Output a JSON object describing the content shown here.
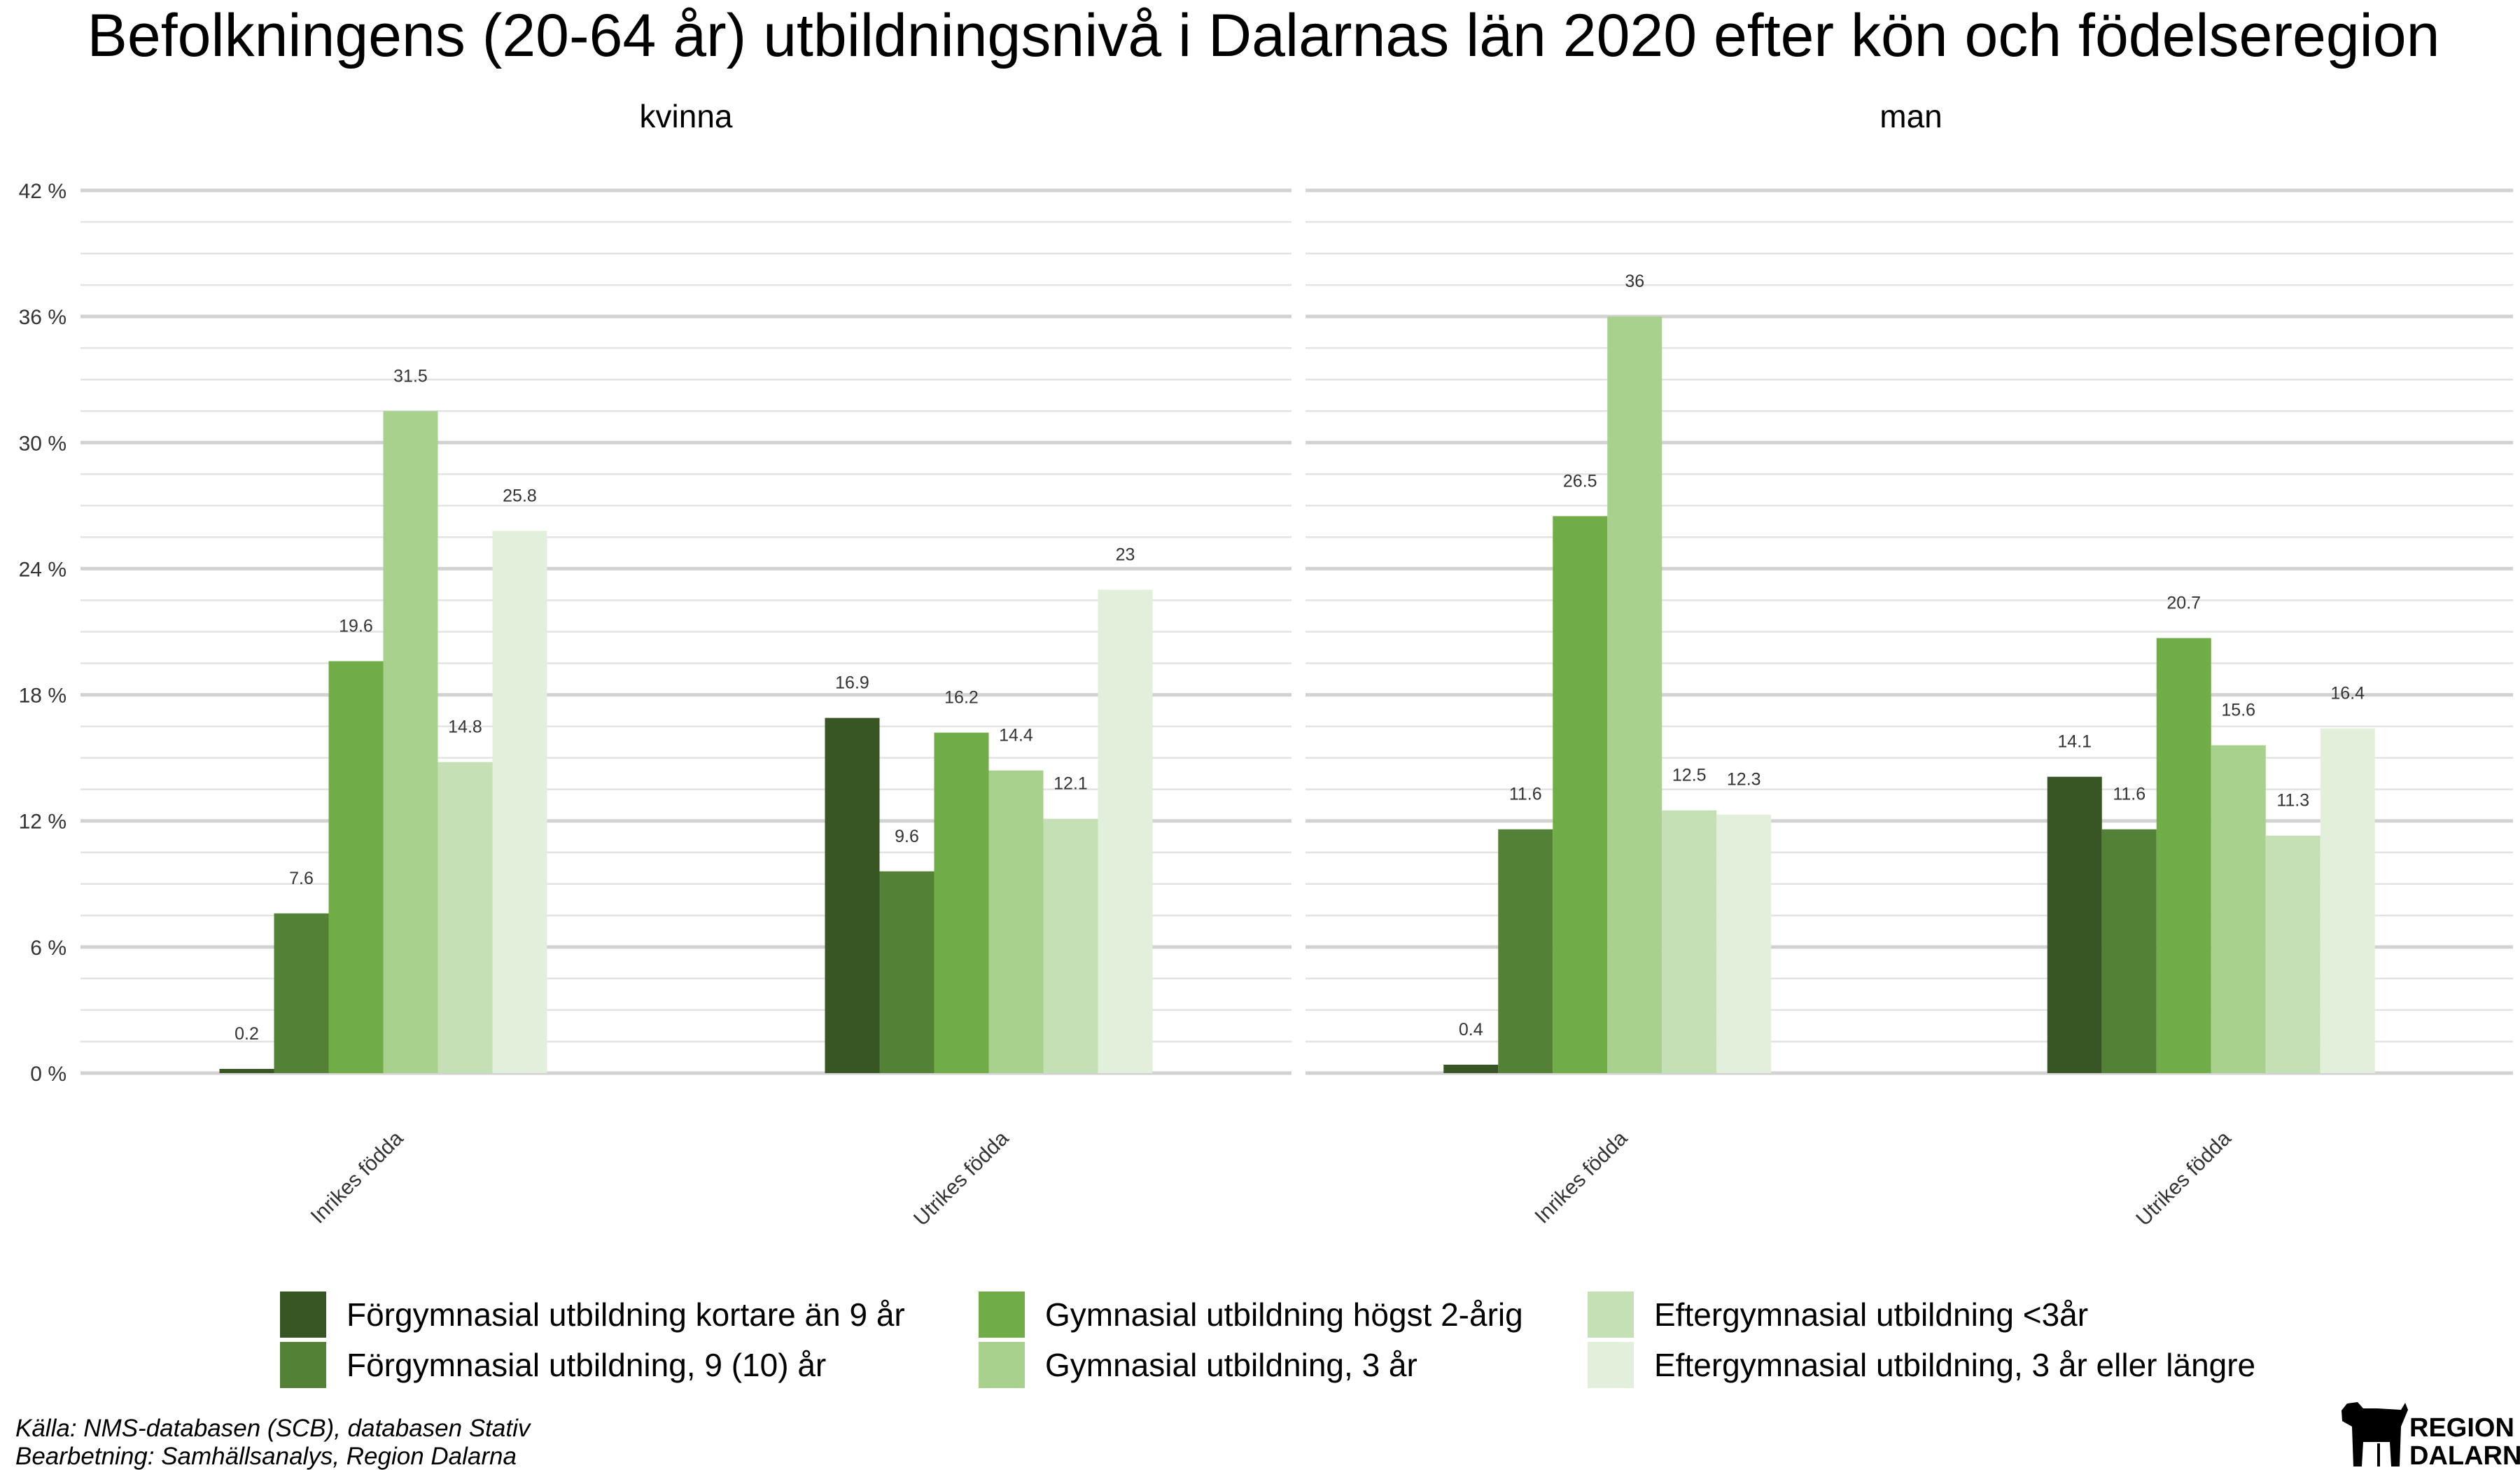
{
  "chart_data": {
    "type": "bar",
    "title": "Befolkningens (20-64 år) utbildningsnivå i Dalarnas län 2020 efter kön och födelseregion",
    "facets": [
      "kvinna",
      "man"
    ],
    "categories": [
      "Inrikes födda",
      "Utrikes födda"
    ],
    "y_ticks": [
      "0 %",
      "6 %",
      "12 %",
      "18 %",
      "24 %",
      "30 %",
      "36 %",
      "42 %"
    ],
    "ylim": [
      0,
      42
    ],
    "grid": true,
    "legend_position": "bottom",
    "series": [
      {
        "name": "Förgymnasial utbildning kortare än 9 år",
        "color": "#375623",
        "values": {
          "kvinna": [
            0.2,
            16.9
          ],
          "man": [
            0.4,
            14.1
          ]
        },
        "labels": {
          "kvinna": [
            "0.2",
            "16.9"
          ],
          "man": [
            "0.4",
            "14.1"
          ]
        }
      },
      {
        "name": "Förgymnasial utbildning, 9 (10) år",
        "color": "#538135",
        "values": {
          "kvinna": [
            7.6,
            9.6
          ],
          "man": [
            11.6,
            11.6
          ]
        },
        "labels": {
          "kvinna": [
            "7.6",
            "9.6"
          ],
          "man": [
            "11.6",
            "11.6"
          ]
        }
      },
      {
        "name": "Gymnasial utbildning högst 2-årig",
        "color": "#70ad47",
        "values": {
          "kvinna": [
            19.6,
            16.2
          ],
          "man": [
            26.5,
            20.7
          ]
        },
        "labels": {
          "kvinna": [
            "19.6",
            "16.2"
          ],
          "man": [
            "26.5",
            "20.7"
          ]
        }
      },
      {
        "name": "Gymnasial utbildning, 3 år",
        "color": "#a9d18e",
        "values": {
          "kvinna": [
            31.5,
            14.4
          ],
          "man": [
            36,
            15.6
          ]
        },
        "labels": {
          "kvinna": [
            "31.5",
            "14.4"
          ],
          "man": [
            "36",
            "15.6"
          ]
        }
      },
      {
        "name": "Eftergymnasial utbildning <3år",
        "color": "#c5e0b4",
        "values": {
          "kvinna": [
            14.8,
            12.1
          ],
          "man": [
            12.5,
            11.3
          ]
        },
        "labels": {
          "kvinna": [
            "14.8",
            "12.1"
          ],
          "man": [
            "12.5",
            "11.3"
          ]
        }
      },
      {
        "name": "Eftergymnasial utbildning, 3 år eller längre",
        "color": "#e2efda",
        "values": {
          "kvinna": [
            25.8,
            23
          ],
          "man": [
            12.3,
            16.4
          ]
        },
        "labels": {
          "kvinna": [
            "25.8",
            "23"
          ],
          "man": [
            "12.3",
            "16.4"
          ]
        }
      }
    ]
  },
  "caption": {
    "source": "Källa: NMS-databasen (SCB), databasen Stativ",
    "processing": "Bearbetning: Samhällsanalys, Region Dalarna"
  },
  "logo": {
    "line1": "REGION",
    "line2": "DALARNA",
    "icon": "dala-horse-icon"
  }
}
